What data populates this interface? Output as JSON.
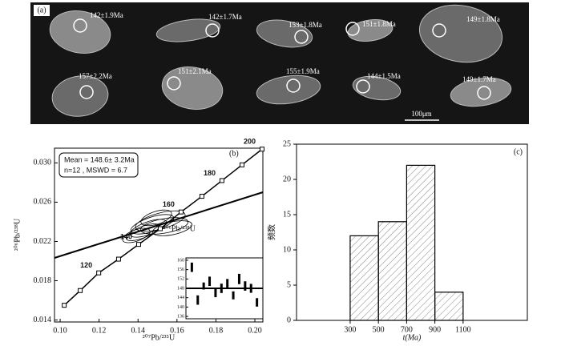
{
  "panel_a": {
    "label": "(a)",
    "grains": [
      "142±1.9Ma",
      "142±1.7Ma",
      "153±1.8Ma",
      "151±1.8Ma",
      "149±1.8Ma",
      "157±2.2Ma",
      "151±2.1Ma",
      "155±1.9Ma",
      "144±1.5Ma",
      "149±1.7Ma"
    ],
    "scale_bar": "100μm"
  },
  "chart_data": [
    {
      "type": "line",
      "title": "(b)",
      "xlabel": "²⁰⁷Pb/²³⁵U",
      "ylabel": "²⁰⁶Pb/²³⁸U",
      "annotation": "²⁰⁶Pb/²³⁸U",
      "mean_text": [
        "Mean = 148.6± 3.2Ma",
        "n=12 , MSWD = 6.7"
      ],
      "xlim": [
        0.0971,
        0.2041
      ],
      "xticks": [
        {
          "value": 0.1,
          "label": "0.10"
        },
        0.12,
        0.14,
        0.16,
        0.18,
        {
          "value": 0.2,
          "label": "0.20"
        }
      ],
      "ylim": [
        0.0138,
        0.0315
      ],
      "yticks": [
        {
          "value": 0.03,
          "label": "0.030"
        },
        0.022,
        0.026,
        0.018,
        0.014
      ],
      "series": [
        {
          "name": "concordia",
          "color": "#000",
          "x": [
            0.1021,
            0.1103,
            0.1198,
            0.13,
            0.1403,
            0.1514,
            0.1621,
            0.1728,
            0.1831,
            0.1934,
            0.2037
          ],
          "y": [
            0.0155,
            0.017,
            0.0188,
            0.0202,
            0.0217,
            0.0233,
            0.025,
            0.0266,
            0.0282,
            0.0298,
            0.0314
          ]
        }
      ],
      "age_labels": [
        120,
        140,
        160,
        180,
        200
      ],
      "inset": {
        "type": "errorbar",
        "ylim": [
          135,
          161
        ],
        "yticks": [
          136,
          140,
          144,
          148,
          152,
          156,
          160
        ],
        "mean": 148,
        "values": [
          157,
          143,
          149,
          151,
          146,
          148,
          150,
          145,
          152,
          149,
          148,
          142
        ],
        "errors": [
          2,
          2,
          1.5,
          2,
          1.8,
          2,
          2,
          1.7,
          2.2,
          2,
          1.9,
          1.8
        ]
      }
    },
    {
      "type": "histogram",
      "title": "(c)",
      "xlabel": "t(Ma)",
      "ylabel": "频数",
      "bins": [
        300,
        500,
        700,
        900,
        1100
      ],
      "values": [
        12,
        14,
        22,
        4
      ],
      "xlim": [
        -80,
        1555
      ],
      "xticks": [
        300,
        500,
        700,
        900,
        1100
      ],
      "ylim": [
        0,
        25
      ],
      "yticks": [
        0,
        5,
        10,
        15,
        20,
        25
      ]
    }
  ]
}
